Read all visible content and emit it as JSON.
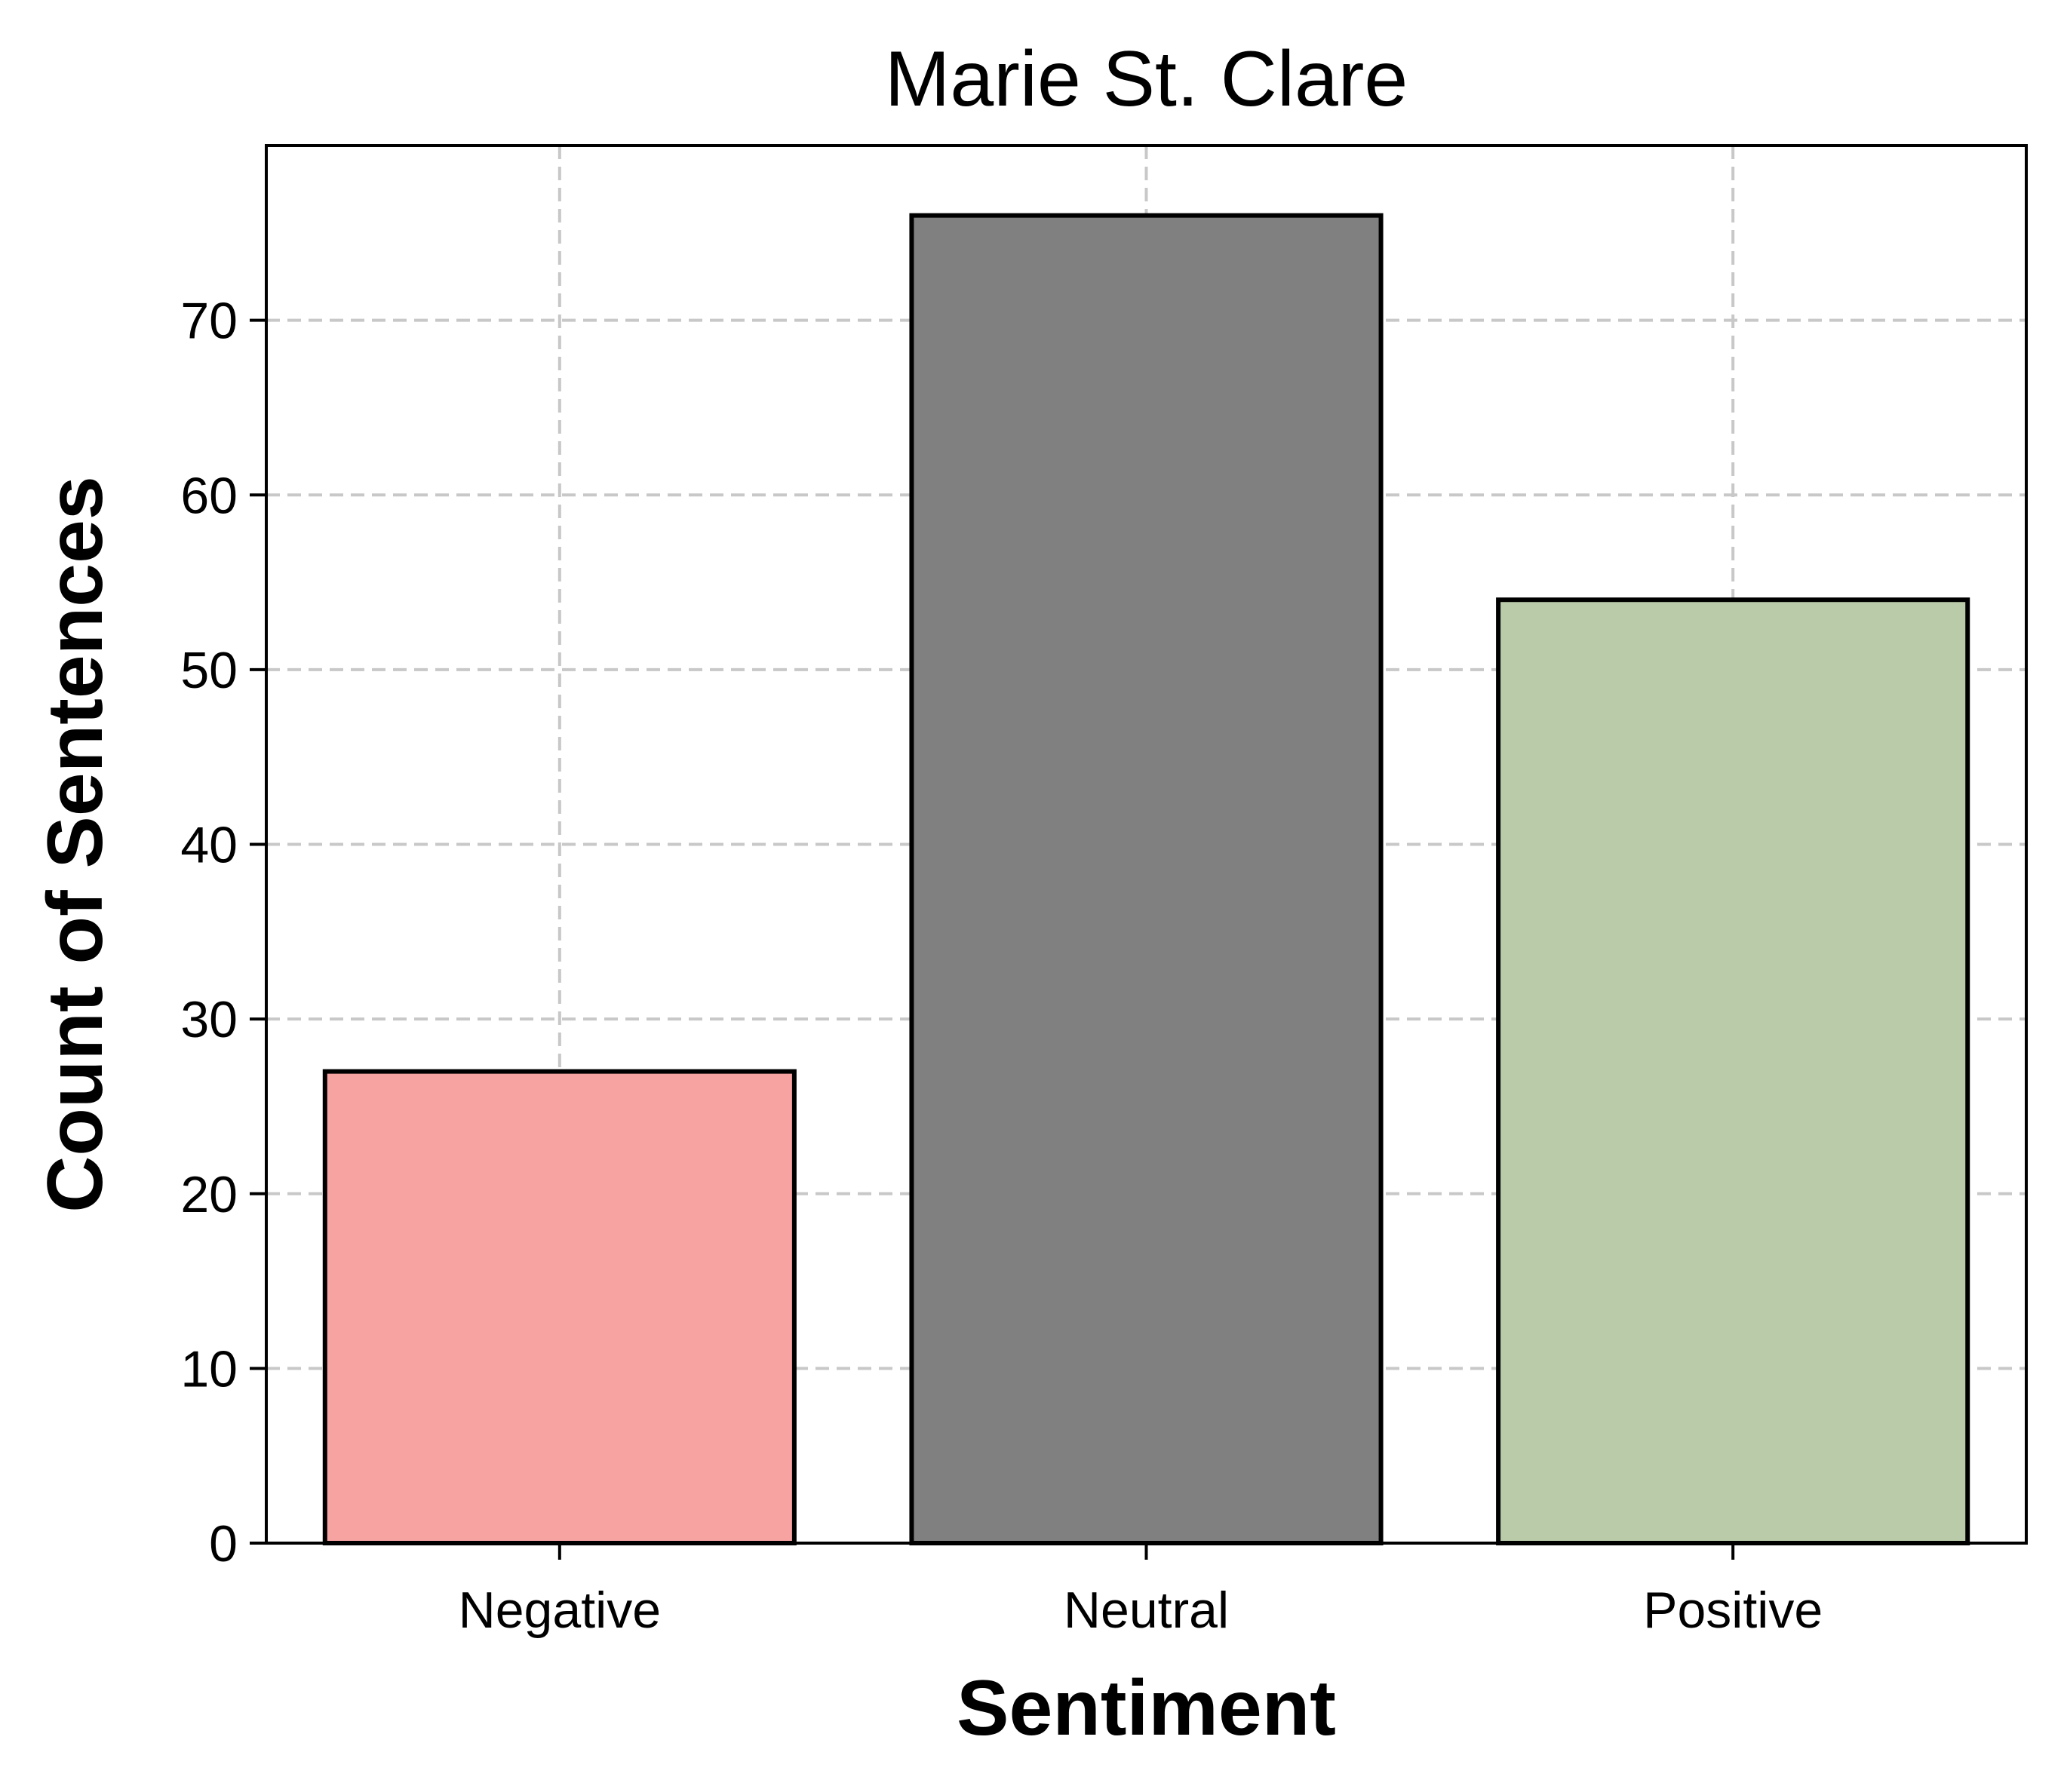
{
  "chart_data": {
    "type": "bar",
    "title": "Marie St. Clare",
    "xlabel": "Sentiment",
    "ylabel": "Count of Sentences",
    "categories": [
      "Negative",
      "Neutral",
      "Positive"
    ],
    "values": [
      27,
      76,
      54
    ],
    "colors": [
      "#f6a3a2",
      "#808080",
      "#bacbaa"
    ],
    "bar_edge_color": "#000000",
    "ylim": [
      0,
      80
    ],
    "yticks": [
      0,
      10,
      20,
      30,
      40,
      50,
      60,
      70
    ],
    "grid": true,
    "grid_style": "dashed",
    "legend": "none"
  }
}
